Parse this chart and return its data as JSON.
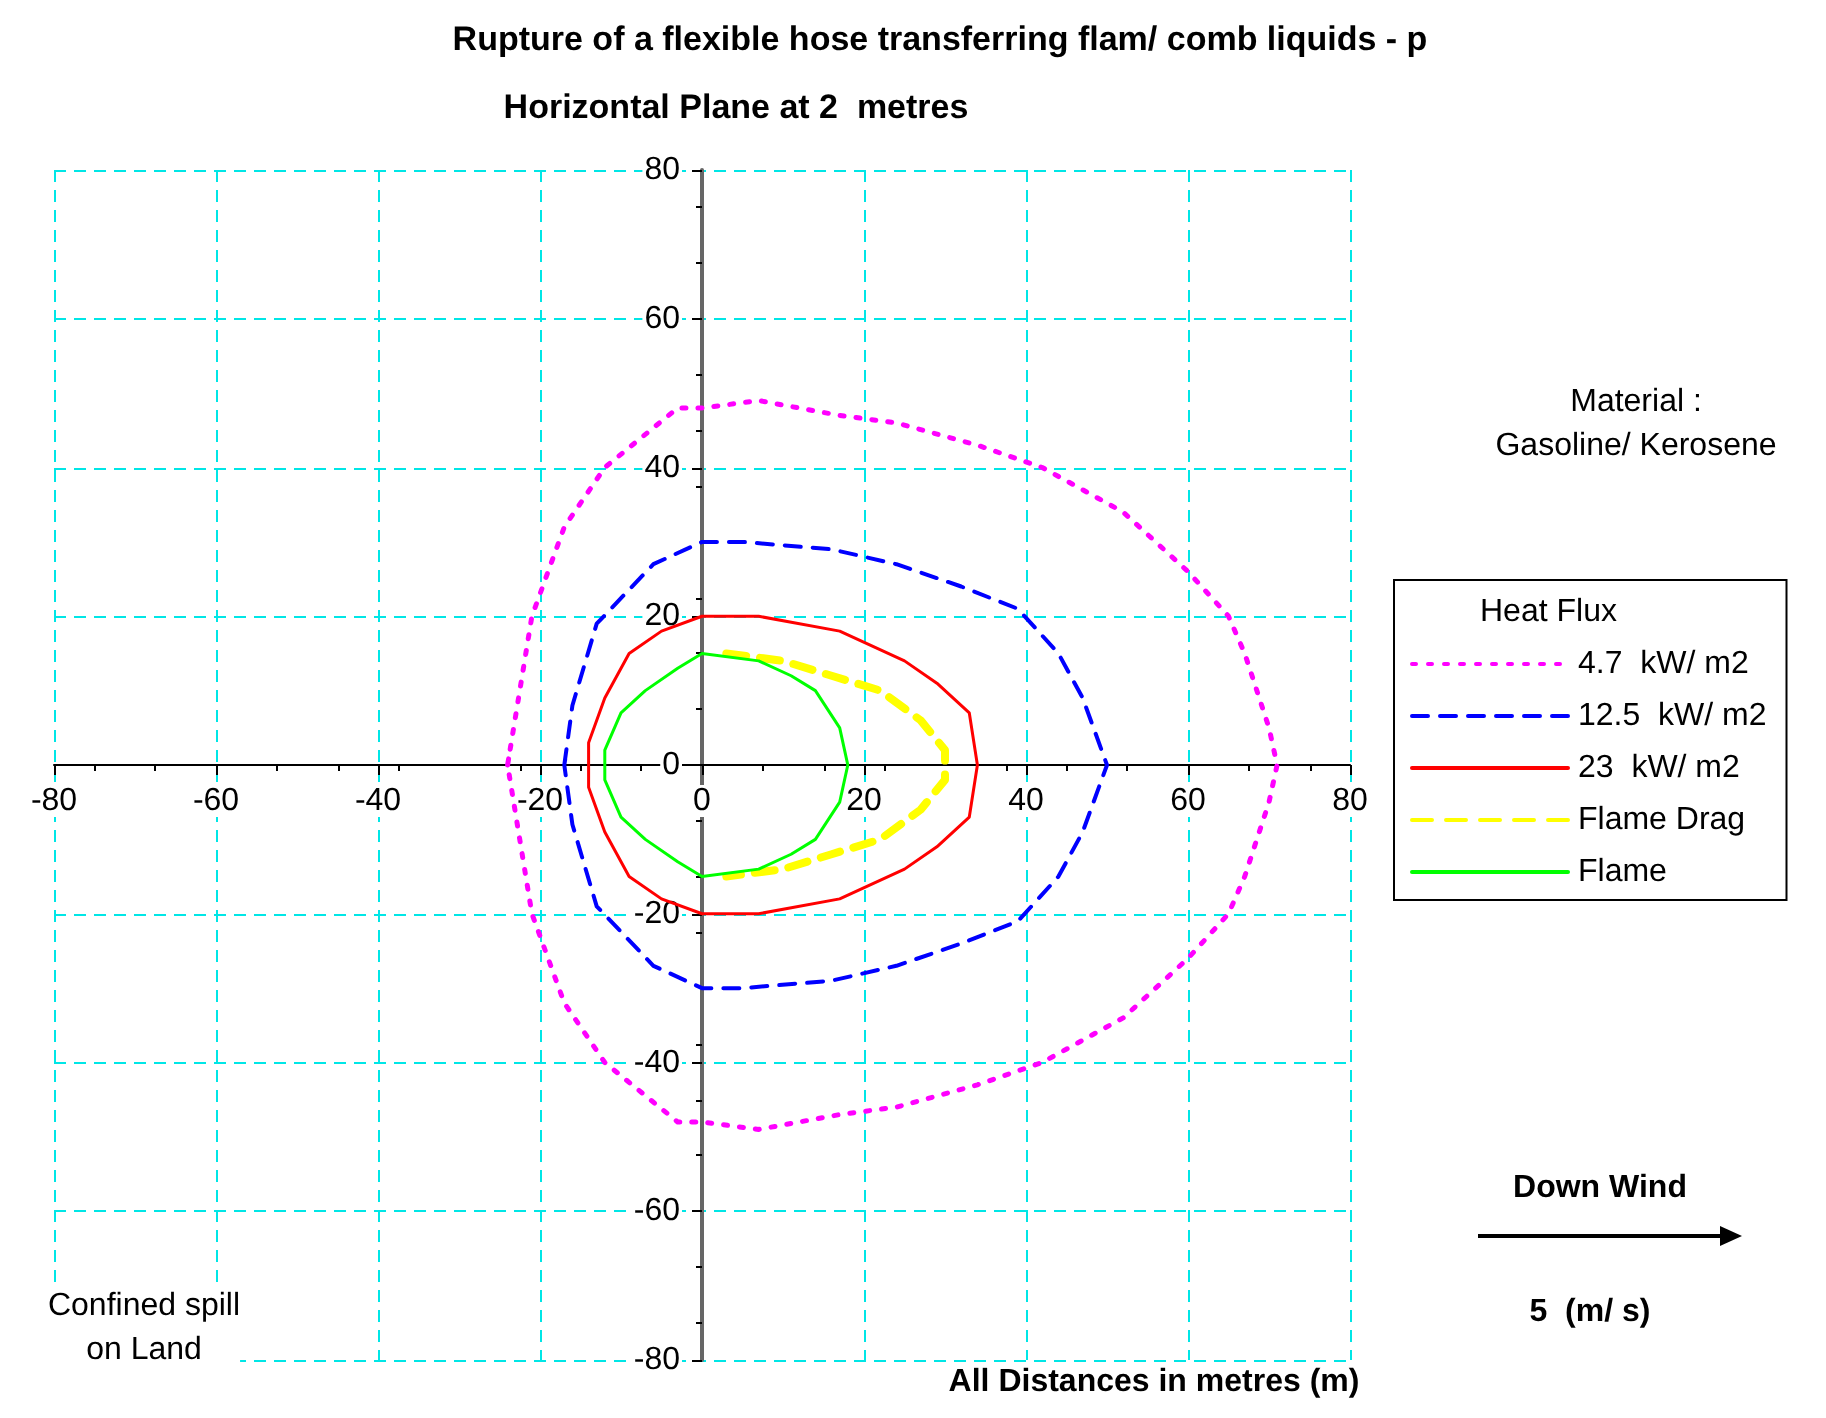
{
  "chart_data": {
    "type": "line",
    "title": "Rupture of a flexible hose transferring flam/ comb liquids - p",
    "subtitle": "Horizontal Plane at 2  metres",
    "xlabel": "All Distances in metres (m)",
    "legend_title": "Heat Flux",
    "legend": "right",
    "grid": true,
    "marker": "none",
    "xlim": [
      -80,
      80
    ],
    "ylim": [
      -80,
      80
    ],
    "xticks": [
      -80,
      -60,
      -40,
      -20,
      0,
      20,
      40,
      60,
      80
    ],
    "yticks": [
      -80,
      -60,
      -40,
      -20,
      0,
      20,
      40,
      60,
      80
    ],
    "annotations": [
      "Material :\nGasoline/ Kerosene",
      "Down Wind",
      "5  (m/ s)",
      "Confined spill\non Land"
    ],
    "series": [
      {
        "name": "4.7  kW/ m2",
        "color": "#ff00ff",
        "line_style": "dotted",
        "x": [
          -24,
          -21,
          -17,
          -12,
          -3,
          0,
          7,
          17,
          24,
          34,
          42,
          52,
          60,
          65,
          67,
          70,
          71,
          70,
          67,
          65,
          60,
          52,
          42,
          34,
          24,
          17,
          7,
          0,
          -3,
          -12,
          -17,
          -21,
          -24,
          -23.7
        ],
        "values": [
          0,
          20,
          32,
          40,
          48,
          48,
          49,
          47,
          46,
          43,
          40,
          34,
          26,
          20,
          15,
          5,
          0,
          -5,
          -15,
          -20,
          -26,
          -34,
          -40,
          -43,
          -46,
          -47,
          -49,
          -48,
          -48,
          -40,
          -32,
          -20,
          0,
          2
        ]
      },
      {
        "name": "12.5  kW/ m2",
        "color": "#0000ff",
        "line_style": "dashed",
        "x": [
          -17,
          -16,
          -13,
          -6,
          0,
          5,
          16,
          24,
          32,
          39,
          44,
          47,
          50,
          47,
          44,
          39,
          32,
          24,
          16,
          5,
          0,
          -6,
          -13,
          -16,
          -17,
          -16.7
        ],
        "values": [
          0,
          8,
          19,
          27,
          30,
          30,
          29,
          27,
          24,
          21,
          15,
          9,
          0,
          -9,
          -15,
          -21,
          -24,
          -27,
          -29,
          -30,
          -30,
          -27,
          -19,
          -8,
          0,
          2
        ]
      },
      {
        "name": "23  kW/ m2",
        "color": "#ff0000",
        "line_style": "solid",
        "x": [
          -14,
          -14,
          -12,
          -9,
          -5,
          0,
          7,
          17,
          25,
          29,
          33,
          34,
          33,
          29,
          25,
          17,
          7,
          0,
          -5,
          -9,
          -12,
          -14,
          -14,
          -14
        ],
        "values": [
          0,
          3,
          9,
          15,
          18,
          20,
          20,
          18,
          14,
          11,
          7,
          0,
          -7,
          -11,
          -14,
          -18,
          -20,
          -20,
          -18,
          -15,
          -9,
          -3,
          0,
          2
        ]
      },
      {
        "name": "Flame Drag",
        "color": "#ffff00",
        "line_style": "dashed",
        "x": [
          3,
          10,
          16,
          22,
          27,
          30,
          30,
          30,
          27,
          22,
          16,
          10,
          3
        ],
        "values": [
          15,
          14,
          12,
          10,
          6,
          2,
          0,
          -2,
          -6,
          -10,
          -12,
          -14,
          -15
        ]
      },
      {
        "name": "Flame",
        "color": "#00ff00",
        "line_style": "solid",
        "x": [
          -12,
          -12,
          -10,
          -7,
          -3,
          0,
          7,
          11,
          14,
          17,
          18,
          17,
          14,
          11,
          7,
          0,
          -3,
          -7,
          -10,
          -12,
          -12,
          -12
        ],
        "values": [
          0,
          2,
          7,
          10,
          13,
          15,
          14,
          12,
          10,
          5,
          0,
          -5,
          -10,
          -12,
          -14,
          -15,
          -13,
          -10,
          -7,
          -2,
          0,
          1
        ]
      }
    ]
  }
}
